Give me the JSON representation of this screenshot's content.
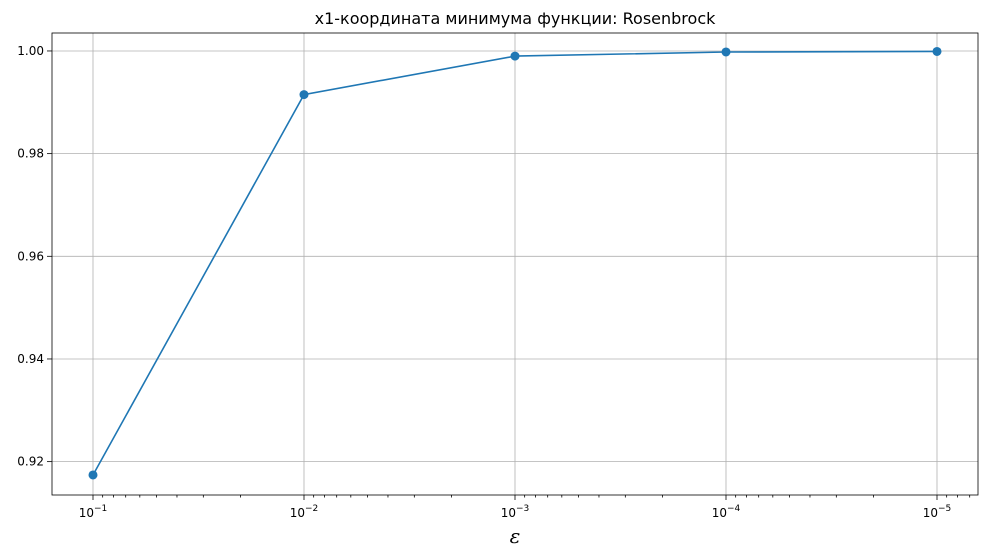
{
  "chart_data": {
    "type": "line",
    "title": "x1-координата минимума функции: Rosenbrock",
    "xlabel": "ε",
    "ylabel": "",
    "x_scale": "log",
    "x_inverted": true,
    "x": [
      0.1,
      0.01,
      0.001,
      0.0001,
      1e-05
    ],
    "x_tick_labels": [
      {
        "base": "10",
        "exp": "−1"
      },
      {
        "base": "10",
        "exp": "−2"
      },
      {
        "base": "10",
        "exp": "−3"
      },
      {
        "base": "10",
        "exp": "−4"
      },
      {
        "base": "10",
        "exp": "−5"
      }
    ],
    "y_ticks": [
      "0.92",
      "0.94",
      "0.96",
      "0.98",
      "1.00"
    ],
    "ylim": [
      0.9135,
      1.0035
    ],
    "grid": true,
    "series": [
      {
        "values": [
          0.9174,
          0.9915,
          0.999,
          0.9998,
          0.9999
        ],
        "color": "#1f77b4",
        "marker": "circle"
      }
    ]
  }
}
